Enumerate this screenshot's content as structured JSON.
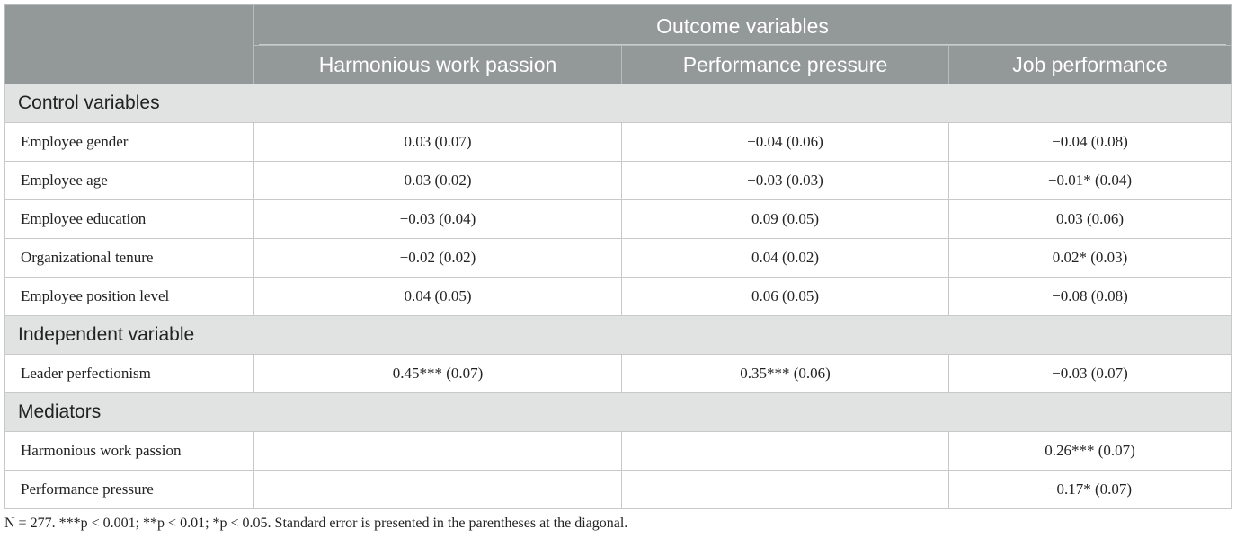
{
  "table": {
    "group_header": "Outcome variables",
    "columns": [
      "Harmonious work passion",
      "Performance pressure",
      "Job performance"
    ],
    "sections": [
      {
        "title": "Control variables",
        "rows": [
          {
            "label": "Employee gender",
            "values": [
              "0.03 (0.07)",
              "−0.04 (0.06)",
              "−0.04 (0.08)"
            ]
          },
          {
            "label": "Employee age",
            "values": [
              "0.03 (0.02)",
              "−0.03 (0.03)",
              "−0.01* (0.04)"
            ]
          },
          {
            "label": "Employee education",
            "values": [
              "−0.03 (0.04)",
              "0.09 (0.05)",
              "0.03 (0.06)"
            ]
          },
          {
            "label": "Organizational tenure",
            "values": [
              "−0.02 (0.02)",
              "0.04 (0.02)",
              "0.02* (0.03)"
            ]
          },
          {
            "label": "Employee position level",
            "values": [
              "0.04 (0.05)",
              "0.06 (0.05)",
              "−0.08 (0.08)"
            ]
          }
        ]
      },
      {
        "title": "Independent variable",
        "rows": [
          {
            "label": "Leader perfectionism",
            "values": [
              "0.45*** (0.07)",
              "0.35*** (0.06)",
              "−0.03 (0.07)"
            ]
          }
        ]
      },
      {
        "title": "Mediators",
        "rows": [
          {
            "label": "Harmonious work passion",
            "values": [
              "",
              "",
              "0.26*** (0.07)"
            ]
          },
          {
            "label": "Performance pressure",
            "values": [
              "",
              "",
              "−0.17* (0.07)"
            ]
          }
        ]
      }
    ]
  },
  "footnote": "N = 277. ***p < 0.001; **p < 0.01; *p < 0.05. Standard error is presented in the parentheses at the diagonal."
}
